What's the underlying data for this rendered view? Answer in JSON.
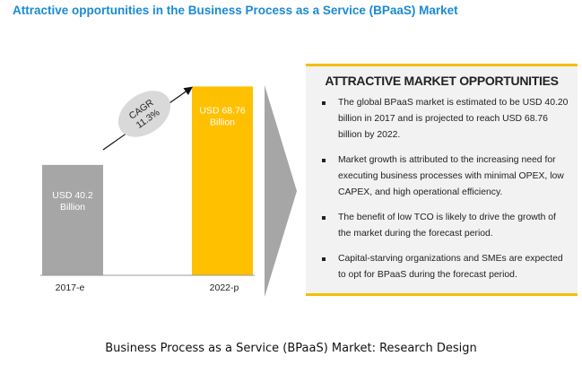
{
  "title": "Attractive opportunities in the Business Process as a Service (BPaaS) Market",
  "chart_data": {
    "type": "bar",
    "categories": [
      "2017-e",
      "2022-p"
    ],
    "values": [
      40.2,
      68.76
    ],
    "value_labels": [
      [
        "USD 40.2",
        "Billion"
      ],
      [
        "USD 68.76",
        "Billion"
      ]
    ],
    "unit": "USD Billion",
    "annotation": {
      "line1": "CAGR",
      "line2": "11.3%"
    },
    "colors": [
      "#a6a6a6",
      "#ffc000"
    ],
    "ylim": [
      0,
      80
    ]
  },
  "panel": {
    "heading": "ATTRACTIVE MARKET OPPORTUNITIES",
    "bullets": [
      "The global BPaaS market is estimated to be USD 40.20 billion in 2017 and is projected to reach USD 68.76 billion by 2022.",
      "Market growth is attributed to the increasing need for executing business processes with minimal OPEX, low CAPEX, and high operational efficiency.",
      "The benefit of low TCO is likely to drive the growth of the market during the forecast period.",
      "Capital-starving organizations and SMEs are expected to opt for BPaaS during the forecast period."
    ]
  },
  "caption": "Business Process as a Service (BPaaS) Market: Research Design"
}
